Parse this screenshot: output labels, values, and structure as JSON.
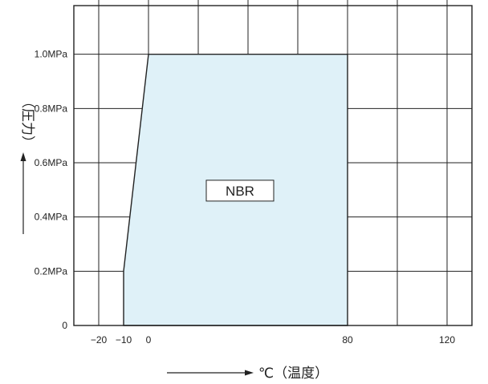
{
  "chart_data": {
    "type": "area",
    "xlabel": "℃（温度）",
    "ylabel": "（圧力）",
    "x_ticks": [
      {
        "value": -20,
        "label": "−20"
      },
      {
        "value": -10,
        "label": "−10"
      },
      {
        "value": 0,
        "label": "0"
      },
      {
        "value": 80,
        "label": "80"
      },
      {
        "value": 120,
        "label": "120"
      }
    ],
    "y_ticks": [
      {
        "value": 0,
        "label": "0"
      },
      {
        "value": 0.2,
        "label": "0.2MPa"
      },
      {
        "value": 0.4,
        "label": "0.4MPa"
      },
      {
        "value": 0.6,
        "label": "0.6MPa"
      },
      {
        "value": 0.8,
        "label": "0.8MPa"
      },
      {
        "value": 1.0,
        "label": "1.0MPa"
      }
    ],
    "xlim": [
      -30,
      130
    ],
    "ylim": [
      0,
      1.2
    ],
    "x_grid_step": 10,
    "y_grid_step": 0.2,
    "grid": true,
    "series": [
      {
        "name": "NBR",
        "points": [
          {
            "x": -10,
            "y": 0
          },
          {
            "x": -10,
            "y": 0.2
          },
          {
            "x": 0,
            "y": 1.0
          },
          {
            "x": 80,
            "y": 1.0
          },
          {
            "x": 80,
            "y": 0
          }
        ],
        "fill_color": "#dff1f8"
      }
    ]
  }
}
